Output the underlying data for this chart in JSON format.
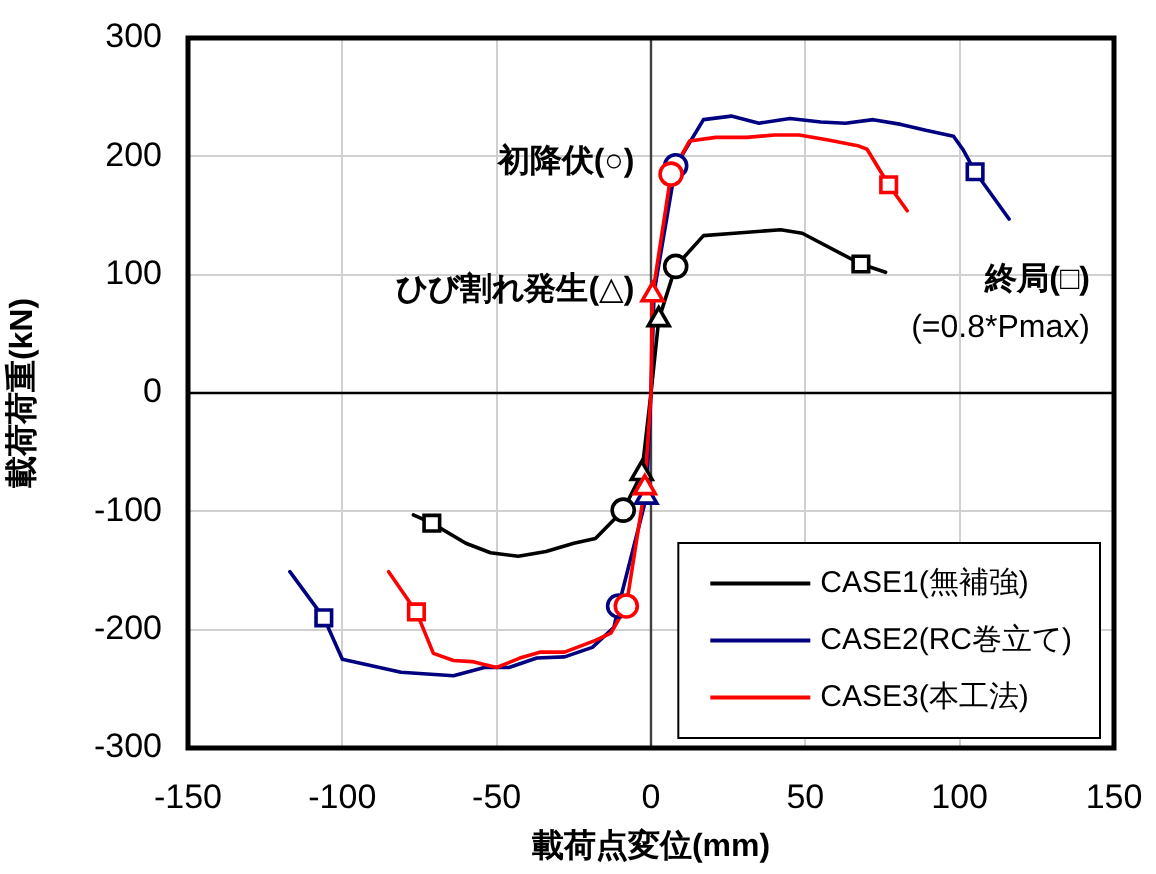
{
  "chart_data": {
    "type": "line",
    "xlabel": "載荷点変位(mm)",
    "ylabel": "載荷荷重(kN)",
    "annotations": [
      "初降伏(○)",
      "ひび割れ発生(△)",
      "終局(□)\n(=0.8*Pmax)"
    ],
    "xlim": [
      -150,
      150
    ],
    "xticks": [
      -150,
      -100,
      -50,
      0,
      50,
      100,
      150
    ],
    "ylim": [
      -300,
      300
    ],
    "yticks": [
      -300,
      -200,
      -100,
      0,
      100,
      200,
      300
    ],
    "grid": true,
    "legend": "bottom right",
    "ref_lines": [
      {
        "axis": "x",
        "value": 0,
        "color": "#404040"
      },
      {
        "axis": "y",
        "value": 0,
        "color": "#000000"
      }
    ],
    "series": [
      {
        "name": "CASE1(無補強)",
        "color": "#000000",
        "x": [
          -77,
          -71,
          -60,
          -52,
          -43,
          -34,
          -25,
          -18,
          -9,
          -3,
          0,
          2.5,
          8,
          17,
          27,
          42,
          49,
          68,
          76
        ],
        "values": [
          -103,
          -110,
          -127,
          -135,
          -138,
          -134,
          -127,
          -123,
          -99,
          -68,
          0,
          62,
          107,
          133,
          135,
          138,
          135,
          109,
          102
        ]
      },
      {
        "name": "CASE2(RC巻立て)",
        "color": "#000080",
        "x": [
          -117,
          -106,
          -100,
          -81,
          -64,
          -54,
          -46,
          -37,
          -28,
          -19,
          -12,
          -10.5,
          -1.5,
          0,
          1,
          8,
          17,
          26,
          35,
          45,
          55,
          63,
          72,
          81,
          89,
          98,
          101,
          105,
          116
        ],
        "values": [
          -151,
          -190,
          -225,
          -236,
          -239,
          -232,
          -232,
          -224,
          -223,
          -215,
          -198,
          -180,
          -88,
          0,
          85,
          192,
          231,
          234,
          228,
          232,
          229,
          228,
          231,
          227,
          222,
          217,
          206,
          187,
          147
        ]
      },
      {
        "name": "CASE3(本工法)",
        "color": "#ff0000",
        "x": [
          -85,
          -76,
          -70.5,
          -64,
          -58,
          -50,
          -42.5,
          -36,
          -28,
          -18,
          -13,
          -8,
          -2,
          0,
          0.5,
          6.5,
          12.5,
          21,
          31,
          40,
          48,
          57,
          67,
          70,
          77,
          83
        ],
        "values": [
          -151,
          -185,
          -220,
          -226,
          -227,
          -232,
          -224,
          -219,
          -219,
          -209,
          -203,
          -180,
          -80,
          0,
          83,
          185,
          213,
          216,
          216,
          218,
          218,
          214,
          209,
          206,
          176,
          154
        ]
      },
      {
        "type": "scatter",
        "marker": "triangle",
        "x": [
          -3,
          2.5,
          -1.5,
          -2,
          0.5
        ],
        "values": [
          -68,
          62,
          -88,
          -80,
          83
        ],
        "colors": [
          "#000000",
          "#000000",
          "#000080",
          "#ff0000",
          "#ff0000"
        ]
      },
      {
        "type": "scatter",
        "marker": "circle",
        "x": [
          -9,
          8,
          -10.5,
          8,
          -8,
          6.5
        ],
        "values": [
          -99,
          107,
          -180,
          192,
          -180,
          185
        ],
        "colors": [
          "#000000",
          "#000000",
          "#000080",
          "#000080",
          "#ff0000",
          "#ff0000"
        ]
      },
      {
        "type": "scatter",
        "marker": "square",
        "x": [
          -71,
          68,
          -106,
          105,
          -76,
          77
        ],
        "values": [
          -110,
          109,
          -190,
          187,
          -185,
          176
        ],
        "colors": [
          "#000000",
          "#000000",
          "#000080",
          "#000080",
          "#ff0000",
          "#ff0000"
        ]
      }
    ]
  }
}
